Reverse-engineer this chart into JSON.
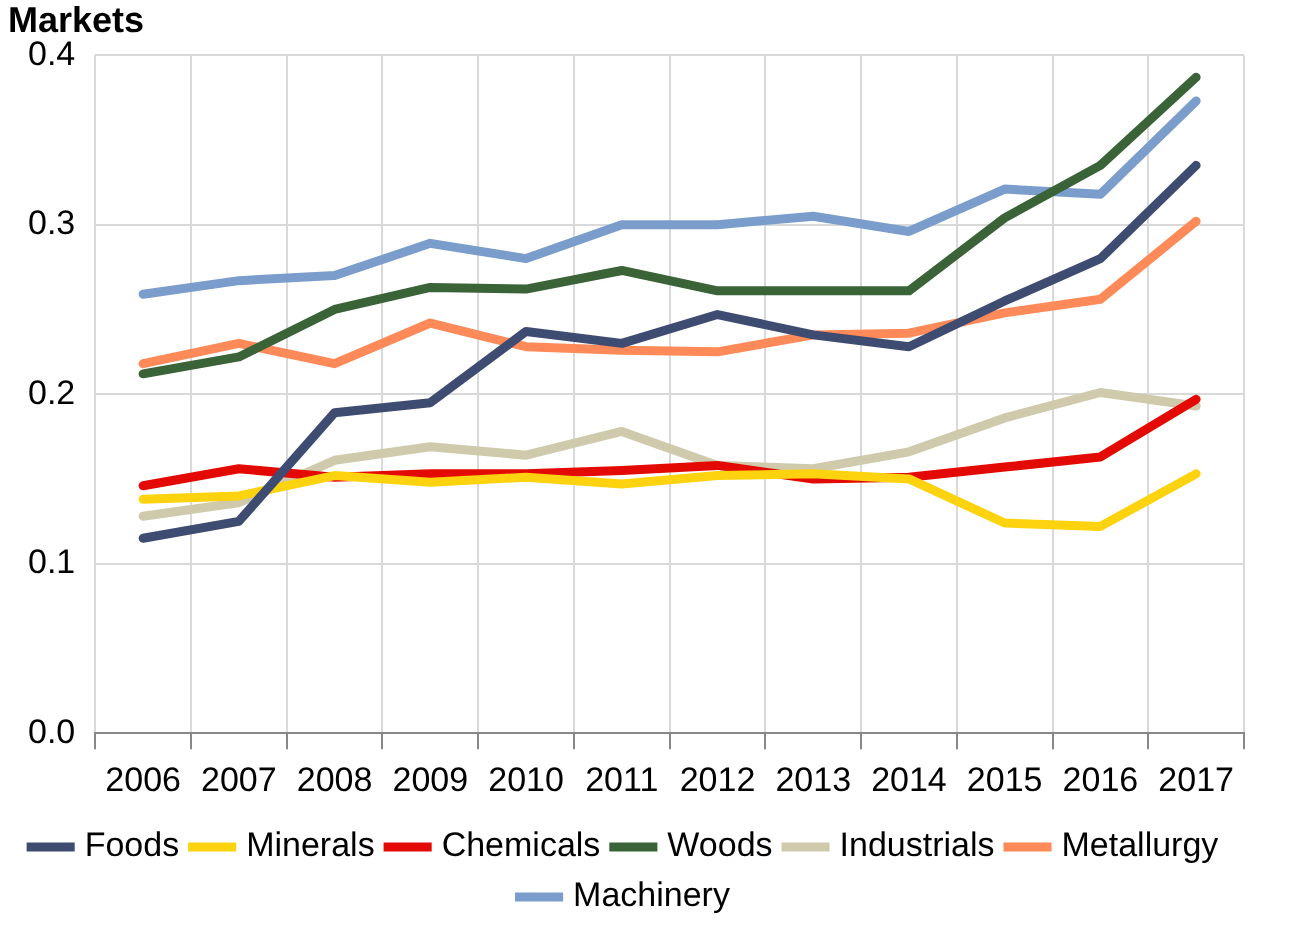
{
  "chart_data": {
    "type": "line",
    "title": "Markets",
    "categories": [
      "2006",
      "2007",
      "2008",
      "2009",
      "2010",
      "2011",
      "2012",
      "2013",
      "2014",
      "2015",
      "2016",
      "2017"
    ],
    "series": [
      {
        "name": "Foods",
        "color": "#3f4c72",
        "values": [
          0.115,
          0.125,
          0.189,
          0.195,
          0.237,
          0.23,
          0.247,
          0.235,
          0.228,
          0.255,
          0.28,
          0.335
        ]
      },
      {
        "name": "Minerals",
        "color": "#fdd20e",
        "values": [
          0.138,
          0.14,
          0.152,
          0.148,
          0.151,
          0.147,
          0.152,
          0.153,
          0.15,
          0.124,
          0.122,
          0.153
        ]
      },
      {
        "name": "Chemicals",
        "color": "#e20a02",
        "values": [
          0.146,
          0.156,
          0.151,
          0.153,
          0.153,
          0.155,
          0.158,
          0.15,
          0.151,
          0.157,
          0.163,
          0.197
        ]
      },
      {
        "name": "Woods",
        "color": "#3a6337",
        "values": [
          0.212,
          0.222,
          0.25,
          0.263,
          0.262,
          0.273,
          0.261,
          0.261,
          0.261,
          0.304,
          0.335,
          0.387
        ]
      },
      {
        "name": "Industrials",
        "color": "#cfcaab",
        "values": [
          0.128,
          0.136,
          0.161,
          0.169,
          0.164,
          0.178,
          0.158,
          0.156,
          0.166,
          0.186,
          0.201,
          0.193
        ]
      },
      {
        "name": "Metallurgy",
        "color": "#fd8a58",
        "values": [
          0.218,
          0.23,
          0.218,
          0.242,
          0.228,
          0.226,
          0.225,
          0.235,
          0.236,
          0.248,
          0.256,
          0.302
        ]
      },
      {
        "name": "Machinery",
        "color": "#7b9dcb",
        "values": [
          0.259,
          0.267,
          0.27,
          0.289,
          0.28,
          0.3,
          0.3,
          0.305,
          0.296,
          0.321,
          0.318,
          0.373
        ]
      }
    ],
    "ylim": [
      0,
      0.4
    ],
    "yticks": [
      {
        "value": 0,
        "label": "0.0"
      },
      {
        "value": 0.1,
        "label": "0.1"
      },
      {
        "value": 0.2,
        "label": "0.2"
      },
      {
        "value": 0.3,
        "label": "0.3"
      },
      {
        "value": 0.4,
        "label": "0.4"
      }
    ],
    "grid": true,
    "legend": "bottom",
    "marker": "none",
    "line_style": "solid"
  }
}
